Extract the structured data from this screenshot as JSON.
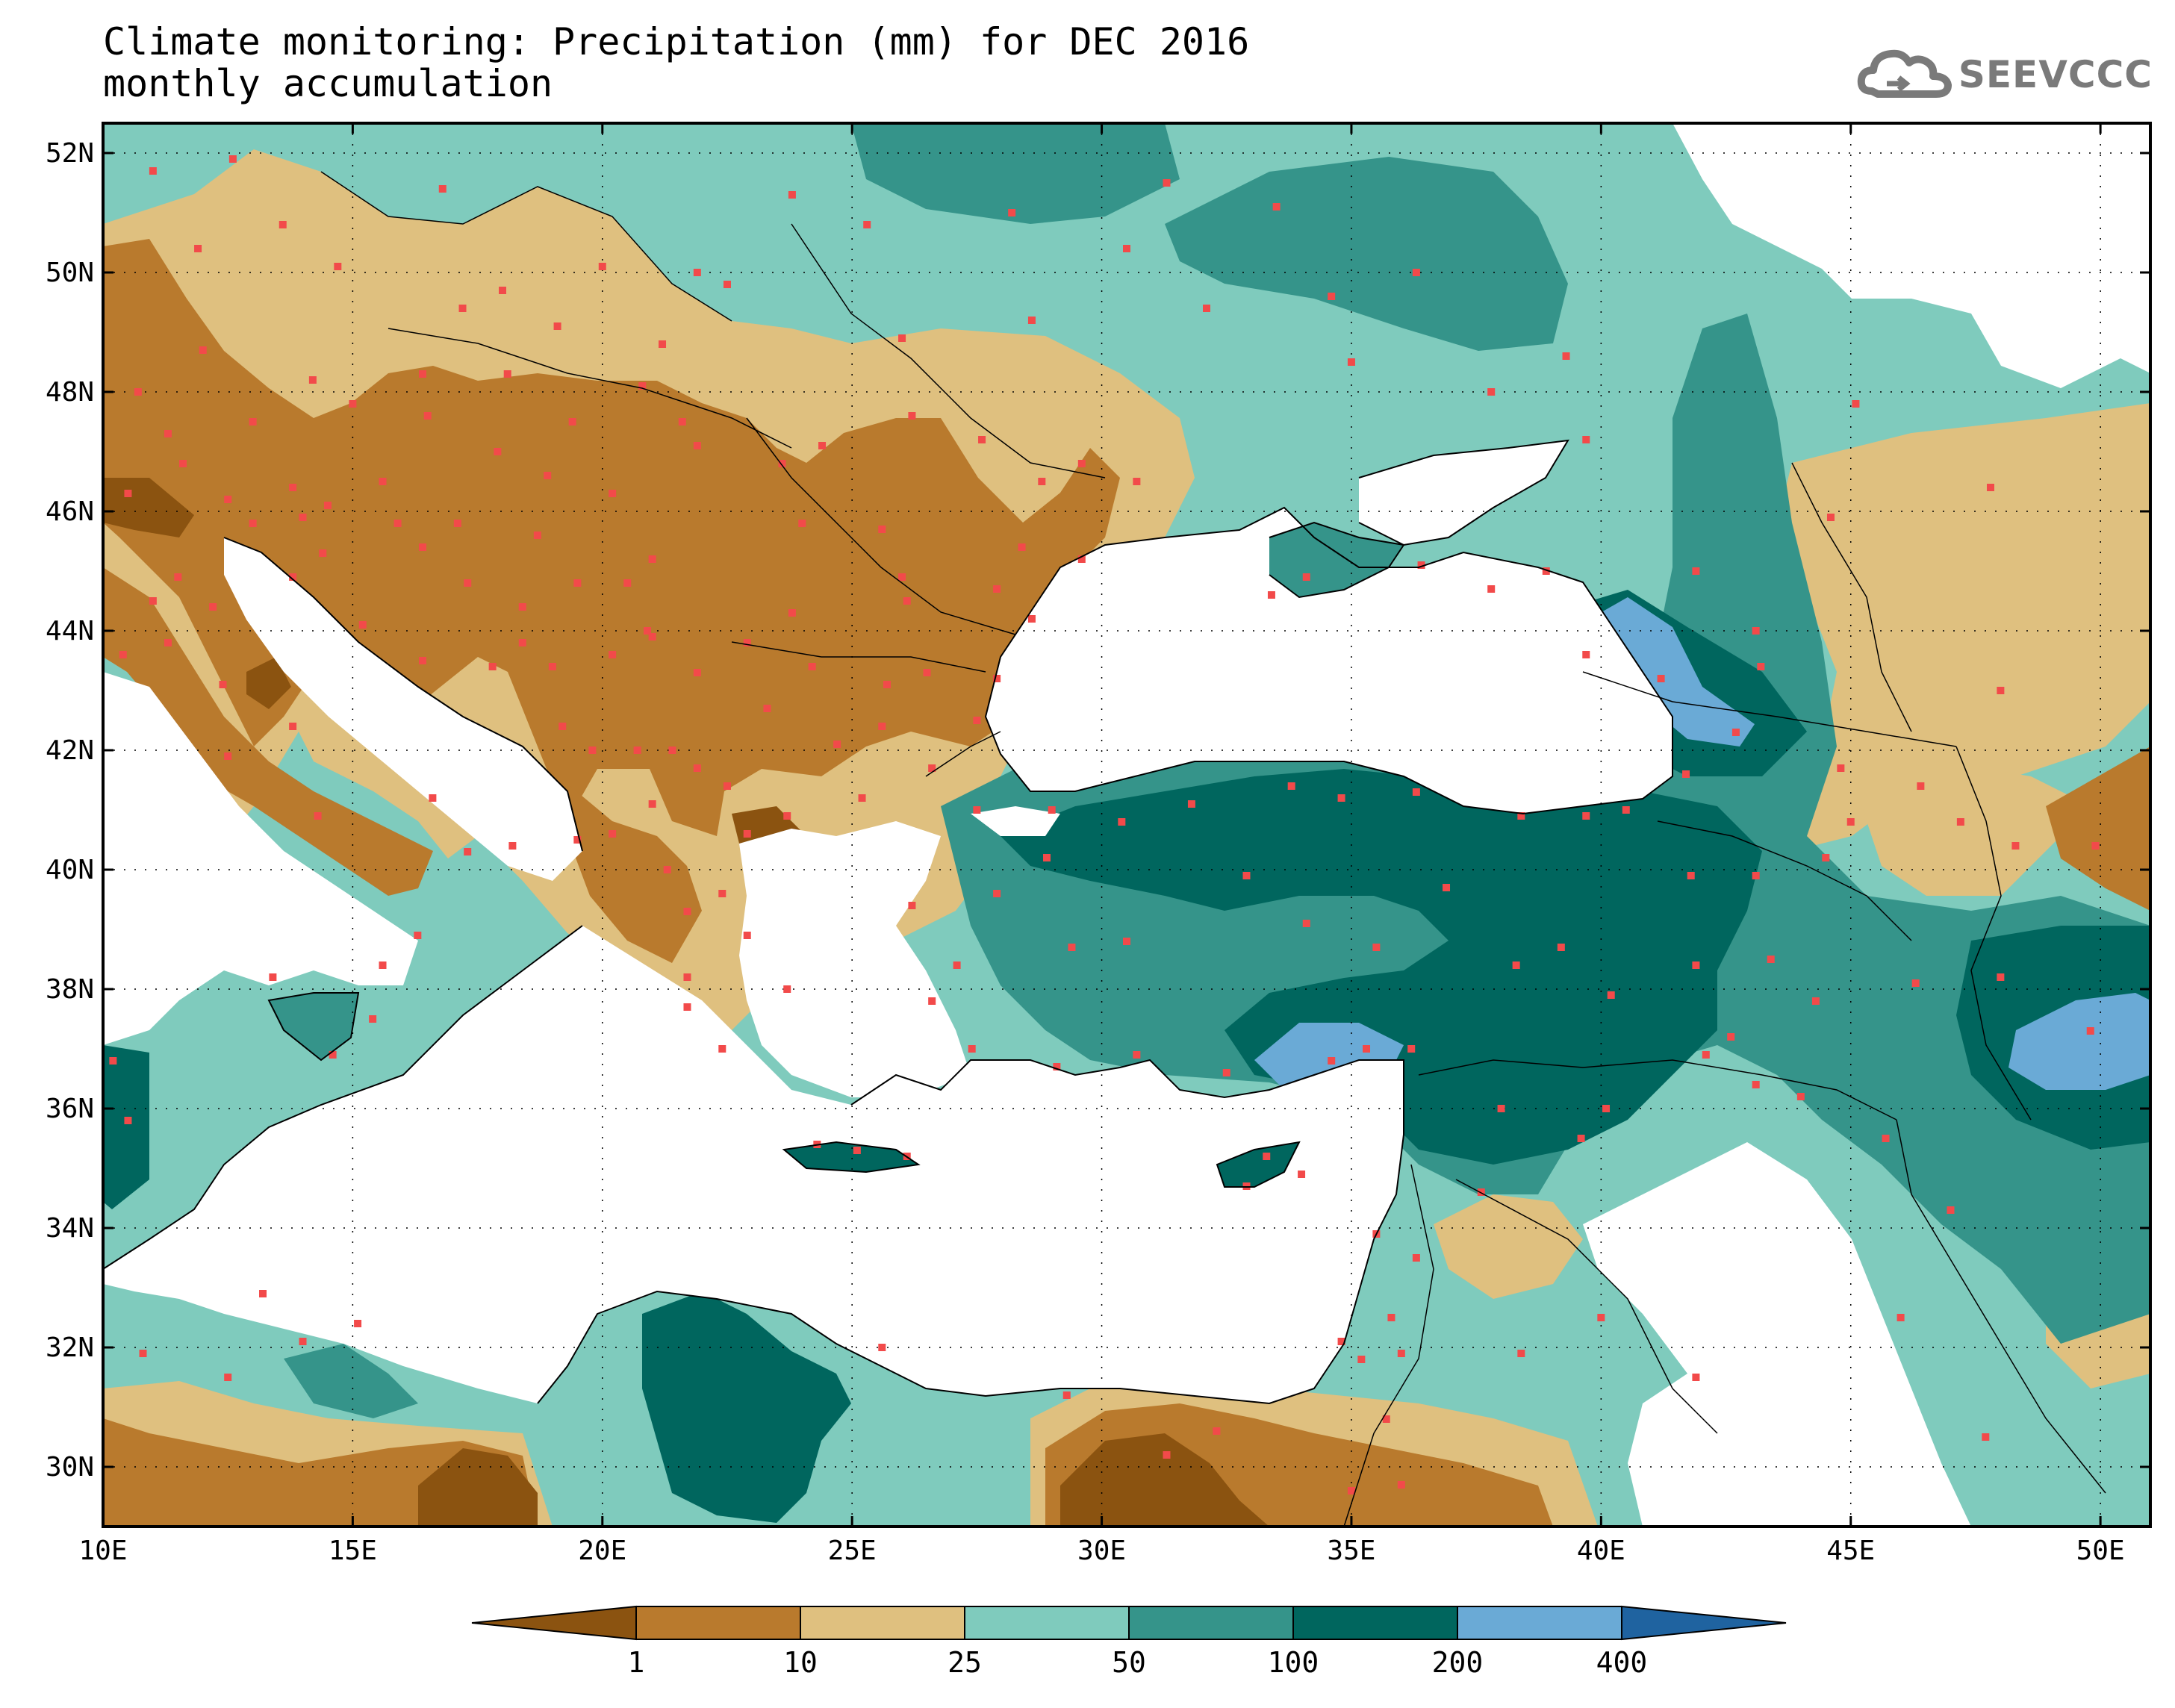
{
  "title": {
    "line1": "Climate monitoring: Precipitation (mm) for DEC 2016",
    "line2": "monthly accumulation"
  },
  "logo": {
    "text": "SEEVCCC",
    "icon": "cloud-icon"
  },
  "axes": {
    "lon_ticks": [
      {
        "value": 10,
        "label": "10E"
      },
      {
        "value": 15,
        "label": "15E"
      },
      {
        "value": 20,
        "label": "20E"
      },
      {
        "value": 25,
        "label": "25E"
      },
      {
        "value": 30,
        "label": "30E"
      },
      {
        "value": 35,
        "label": "35E"
      },
      {
        "value": 40,
        "label": "40E"
      },
      {
        "value": 45,
        "label": "45E"
      },
      {
        "value": 50,
        "label": "50E"
      }
    ],
    "lat_ticks": [
      {
        "value": 30,
        "label": "30N"
      },
      {
        "value": 32,
        "label": "32N"
      },
      {
        "value": 34,
        "label": "34N"
      },
      {
        "value": 36,
        "label": "36N"
      },
      {
        "value": 38,
        "label": "38N"
      },
      {
        "value": 40,
        "label": "40N"
      },
      {
        "value": 42,
        "label": "42N"
      },
      {
        "value": 44,
        "label": "44N"
      },
      {
        "value": 46,
        "label": "46N"
      },
      {
        "value": 48,
        "label": "48N"
      },
      {
        "value": 50,
        "label": "50N"
      },
      {
        "value": 52,
        "label": "52N"
      }
    ],
    "lon_range": [
      10,
      51
    ],
    "lat_range": [
      29,
      52.5
    ],
    "grid": "dotted"
  },
  "colorbar": {
    "labels": [
      "1",
      "10",
      "25",
      "50",
      "100",
      "200",
      "400"
    ],
    "colors": [
      "#8b5310",
      "#b97a2d",
      "#dfc07f",
      "#7fcbbd",
      "#35948a",
      "#00665e",
      "#6aaad6",
      "#1f63a0"
    ]
  },
  "stations": [
    [
      11.0,
      51.7
    ],
    [
      12.6,
      51.9
    ],
    [
      14.7,
      50.1
    ],
    [
      16.8,
      51.4
    ],
    [
      11.9,
      50.4
    ],
    [
      13.6,
      50.8
    ],
    [
      17.2,
      49.4
    ],
    [
      18.0,
      49.7
    ],
    [
      16.4,
      48.3
    ],
    [
      15.0,
      47.8
    ],
    [
      11.3,
      47.3
    ],
    [
      13.0,
      47.5
    ],
    [
      14.2,
      48.2
    ],
    [
      12.0,
      48.7
    ],
    [
      10.7,
      48.0
    ],
    [
      11.6,
      46.8
    ],
    [
      10.5,
      46.3
    ],
    [
      12.5,
      46.2
    ],
    [
      13.8,
      46.4
    ],
    [
      14.5,
      46.1
    ],
    [
      15.6,
      46.5
    ],
    [
      14.0,
      45.9
    ],
    [
      15.9,
      45.8
    ],
    [
      17.1,
      45.8
    ],
    [
      16.4,
      45.4
    ],
    [
      18.7,
      45.6
    ],
    [
      17.3,
      44.8
    ],
    [
      18.4,
      44.4
    ],
    [
      19.5,
      44.8
    ],
    [
      20.5,
      44.8
    ],
    [
      21.0,
      45.2
    ],
    [
      20.9,
      44.0
    ],
    [
      21.9,
      43.3
    ],
    [
      21.0,
      43.9
    ],
    [
      20.2,
      43.6
    ],
    [
      19.0,
      43.4
    ],
    [
      18.4,
      43.8
    ],
    [
      17.8,
      43.4
    ],
    [
      16.4,
      43.5
    ],
    [
      15.2,
      44.1
    ],
    [
      13.8,
      44.9
    ],
    [
      14.4,
      45.3
    ],
    [
      19.2,
      42.4
    ],
    [
      19.8,
      42.0
    ],
    [
      20.7,
      42.0
    ],
    [
      21.4,
      42.0
    ],
    [
      21.9,
      41.7
    ],
    [
      22.5,
      41.4
    ],
    [
      21.0,
      41.1
    ],
    [
      20.2,
      40.6
    ],
    [
      19.5,
      40.5
    ],
    [
      21.3,
      40.0
    ],
    [
      22.9,
      40.6
    ],
    [
      23.7,
      40.9
    ],
    [
      22.4,
      39.6
    ],
    [
      21.7,
      39.3
    ],
    [
      22.9,
      38.9
    ],
    [
      23.7,
      38.0
    ],
    [
      21.7,
      38.2
    ],
    [
      22.4,
      37.0
    ],
    [
      21.7,
      37.7
    ],
    [
      24.3,
      35.4
    ],
    [
      25.1,
      35.3
    ],
    [
      26.1,
      35.2
    ],
    [
      25.2,
      41.2
    ],
    [
      24.7,
      42.1
    ],
    [
      23.3,
      42.7
    ],
    [
      25.6,
      42.4
    ],
    [
      27.5,
      42.5
    ],
    [
      27.9,
      43.2
    ],
    [
      26.5,
      43.3
    ],
    [
      25.7,
      43.1
    ],
    [
      24.2,
      43.4
    ],
    [
      22.9,
      43.8
    ],
    [
      23.8,
      44.3
    ],
    [
      26.1,
      44.5
    ],
    [
      28.6,
      44.2
    ],
    [
      27.9,
      44.7
    ],
    [
      26.0,
      44.9
    ],
    [
      25.6,
      45.7
    ],
    [
      24.0,
      45.8
    ],
    [
      23.6,
      46.8
    ],
    [
      21.9,
      47.1
    ],
    [
      24.4,
      47.1
    ],
    [
      26.2,
      47.6
    ],
    [
      27.6,
      47.2
    ],
    [
      28.8,
      46.5
    ],
    [
      29.6,
      46.8
    ],
    [
      30.7,
      46.5
    ],
    [
      28.4,
      45.4
    ],
    [
      29.6,
      45.2
    ],
    [
      33.4,
      44.6
    ],
    [
      34.1,
      44.9
    ],
    [
      36.4,
      45.1
    ],
    [
      39.7,
      47.2
    ],
    [
      38.9,
      45.0
    ],
    [
      37.8,
      44.7
    ],
    [
      39.7,
      43.6
    ],
    [
      41.9,
      45.0
    ],
    [
      43.1,
      44.0
    ],
    [
      44.8,
      41.7
    ],
    [
      42.7,
      42.3
    ],
    [
      41.7,
      41.6
    ],
    [
      40.5,
      41.0
    ],
    [
      39.7,
      40.9
    ],
    [
      38.4,
      40.9
    ],
    [
      36.3,
      41.3
    ],
    [
      34.8,
      41.2
    ],
    [
      33.8,
      41.4
    ],
    [
      31.8,
      41.1
    ],
    [
      30.4,
      40.8
    ],
    [
      29.0,
      41.0
    ],
    [
      27.5,
      41.0
    ],
    [
      26.6,
      41.7
    ],
    [
      28.9,
      40.2
    ],
    [
      27.9,
      39.6
    ],
    [
      27.1,
      38.4
    ],
    [
      26.2,
      39.4
    ],
    [
      29.4,
      38.7
    ],
    [
      30.5,
      38.8
    ],
    [
      32.9,
      39.9
    ],
    [
      34.1,
      39.1
    ],
    [
      35.5,
      38.7
    ],
    [
      36.9,
      39.7
    ],
    [
      38.3,
      38.4
    ],
    [
      39.2,
      38.7
    ],
    [
      40.2,
      37.9
    ],
    [
      41.9,
      38.4
    ],
    [
      43.4,
      38.5
    ],
    [
      43.1,
      39.9
    ],
    [
      44.5,
      40.2
    ],
    [
      45.0,
      40.8
    ],
    [
      46.4,
      41.4
    ],
    [
      47.2,
      40.8
    ],
    [
      48.3,
      40.4
    ],
    [
      49.9,
      40.4
    ],
    [
      49.8,
      37.3
    ],
    [
      48.0,
      38.2
    ],
    [
      46.3,
      38.1
    ],
    [
      47.0,
      34.3
    ],
    [
      45.7,
      35.5
    ],
    [
      44.0,
      36.2
    ],
    [
      43.1,
      36.4
    ],
    [
      42.1,
      36.9
    ],
    [
      40.1,
      36.0
    ],
    [
      38.0,
      36.0
    ],
    [
      36.2,
      37.0
    ],
    [
      35.3,
      37.0
    ],
    [
      34.6,
      36.8
    ],
    [
      32.5,
      36.6
    ],
    [
      30.7,
      36.9
    ],
    [
      29.1,
      36.7
    ],
    [
      27.4,
      37.0
    ],
    [
      26.6,
      37.8
    ],
    [
      33.3,
      35.2
    ],
    [
      32.9,
      34.7
    ],
    [
      34.0,
      34.9
    ],
    [
      35.5,
      33.9
    ],
    [
      36.3,
      33.5
    ],
    [
      35.8,
      32.5
    ],
    [
      36.0,
      31.9
    ],
    [
      35.2,
      31.8
    ],
    [
      34.8,
      32.1
    ],
    [
      35.7,
      30.8
    ],
    [
      35.0,
      29.6
    ],
    [
      36.0,
      29.7
    ],
    [
      38.4,
      31.9
    ],
    [
      40.0,
      32.5
    ],
    [
      41.9,
      31.5
    ],
    [
      46.0,
      32.5
    ],
    [
      47.7,
      30.5
    ],
    [
      25.6,
      32.0
    ],
    [
      29.3,
      31.2
    ],
    [
      31.3,
      30.2
    ],
    [
      32.3,
      30.6
    ],
    [
      12.5,
      31.5
    ],
    [
      13.2,
      32.9
    ],
    [
      15.1,
      32.4
    ],
    [
      14.0,
      32.1
    ],
    [
      10.8,
      31.9
    ],
    [
      10.2,
      36.8
    ],
    [
      10.5,
      35.8
    ],
    [
      15.4,
      37.5
    ],
    [
      13.4,
      38.2
    ],
    [
      14.6,
      36.9
    ],
    [
      16.3,
      38.9
    ],
    [
      15.6,
      38.4
    ],
    [
      17.3,
      40.3
    ],
    [
      18.2,
      40.4
    ],
    [
      16.6,
      41.2
    ],
    [
      14.3,
      40.9
    ],
    [
      12.5,
      41.9
    ],
    [
      13.8,
      42.4
    ],
    [
      11.3,
      43.8
    ],
    [
      12.4,
      43.1
    ],
    [
      11.0,
      44.5
    ],
    [
      12.2,
      44.4
    ],
    [
      13.0,
      45.8
    ],
    [
      11.5,
      44.9
    ],
    [
      10.4,
      43.6
    ],
    [
      26.0,
      48.9
    ],
    [
      28.6,
      49.2
    ],
    [
      30.5,
      50.4
    ],
    [
      32.1,
      49.4
    ],
    [
      34.6,
      49.6
    ],
    [
      36.3,
      50.0
    ],
    [
      35.0,
      48.5
    ],
    [
      37.8,
      48.0
    ],
    [
      39.3,
      48.6
    ],
    [
      33.5,
      51.1
    ],
    [
      31.3,
      51.5
    ],
    [
      28.2,
      51.0
    ],
    [
      25.3,
      50.8
    ],
    [
      23.8,
      51.3
    ],
    [
      21.9,
      50.0
    ],
    [
      20.0,
      50.1
    ],
    [
      22.5,
      49.8
    ],
    [
      21.2,
      48.8
    ],
    [
      19.1,
      49.1
    ],
    [
      18.1,
      48.3
    ],
    [
      19.4,
      47.5
    ],
    [
      20.8,
      48.1
    ],
    [
      21.6,
      47.5
    ],
    [
      20.2,
      46.3
    ],
    [
      18.9,
      46.6
    ],
    [
      17.9,
      47.0
    ],
    [
      16.5,
      47.6
    ],
    [
      45.1,
      47.8
    ],
    [
      47.8,
      46.4
    ],
    [
      44.6,
      45.9
    ],
    [
      43.2,
      43.4
    ],
    [
      48.0,
      43.0
    ],
    [
      41.2,
      43.2
    ],
    [
      41.8,
      39.9
    ],
    [
      42.6,
      37.2
    ],
    [
      44.3,
      37.8
    ],
    [
      39.6,
      35.5
    ],
    [
      37.6,
      34.6
    ]
  ]
}
